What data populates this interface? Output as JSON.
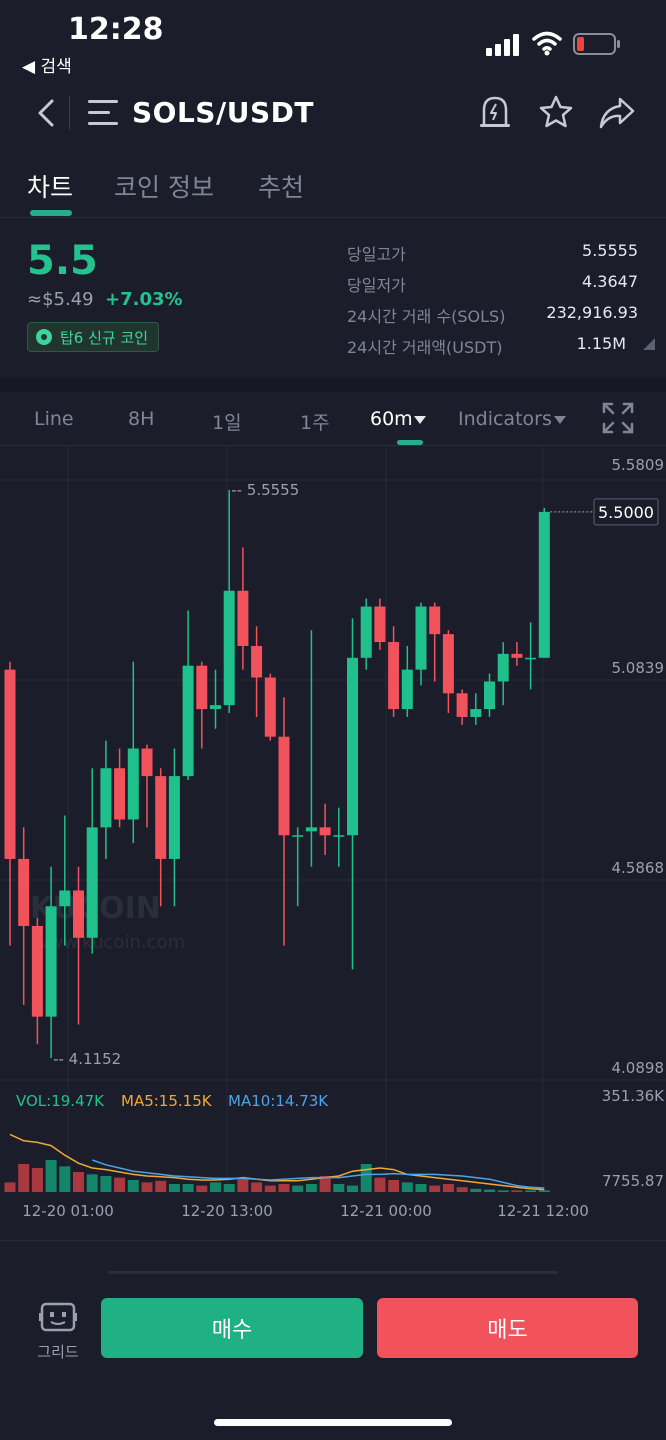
{
  "status": {
    "time": "12:28",
    "back_label": "◀ 검색"
  },
  "header": {
    "pair": "SOLS/USDT"
  },
  "tabs": [
    {
      "label": "차트"
    },
    {
      "label": "코인 정보"
    },
    {
      "label": "추천"
    }
  ],
  "ticker": {
    "price": "5.5",
    "fiat": "≈$5.49",
    "change": "+7.03%",
    "badge": "탑6 신규 코인",
    "stats": [
      {
        "label": "당일고가",
        "value": "5.5555"
      },
      {
        "label": "당일저가",
        "value": "4.3647"
      },
      {
        "label": "24시간 거래 수(SOLS)",
        "value": "232,916.93"
      },
      {
        "label": "24시간 거래액(USDT)",
        "value": "1.15M"
      }
    ]
  },
  "toolbar": {
    "items": [
      "Line",
      "8H",
      "1일",
      "1주",
      "60m",
      "Indicators"
    ],
    "active": "60m"
  },
  "chart": {
    "watermark_main": "KUCOIN",
    "watermark_url": "www.kucoin.com",
    "y_ticks": [
      "5.5809",
      "5.0839",
      "4.5868",
      "4.0898"
    ],
    "current_price": "5.5000",
    "high_label": "5.5555",
    "low_label": "4.1152",
    "vol_label": "VOL:19.47K",
    "ma5_label": "MA5:15.15K",
    "ma10_label": "MA10:14.73K",
    "vol_max": "351.36K",
    "vol_min": "7755.87",
    "x_ticks": [
      "12-20 01:00",
      "12-20 13:00",
      "12-21 00:00",
      "12-21 12:00"
    ],
    "colors": {
      "up": "#1fc08c",
      "down": "#f2525b",
      "ma5": "#f0a832",
      "ma10": "#4ba3e8",
      "vol": "#1fc08c"
    }
  },
  "chart_data": {
    "type": "candlestick",
    "ylim": [
      4.0898,
      5.5809
    ],
    "candles": [
      {
        "o": 5.1,
        "c": 4.62,
        "h": 5.12,
        "l": 4.4
      },
      {
        "o": 4.62,
        "c": 4.45,
        "h": 4.7,
        "l": 4.25
      },
      {
        "o": 4.45,
        "c": 4.22,
        "h": 4.47,
        "l": 4.15
      },
      {
        "o": 4.22,
        "c": 4.5,
        "h": 4.6,
        "l": 4.1152
      },
      {
        "o": 4.5,
        "c": 4.54,
        "h": 4.73,
        "l": 4.4
      },
      {
        "o": 4.54,
        "c": 4.42,
        "h": 4.6,
        "l": 4.2
      },
      {
        "o": 4.42,
        "c": 4.7,
        "h": 4.85,
        "l": 4.38
      },
      {
        "o": 4.7,
        "c": 4.85,
        "h": 4.92,
        "l": 4.62
      },
      {
        "o": 4.85,
        "c": 4.72,
        "h": 4.9,
        "l": 4.7
      },
      {
        "o": 4.72,
        "c": 4.9,
        "h": 5.12,
        "l": 4.66
      },
      {
        "o": 4.9,
        "c": 4.83,
        "h": 4.91,
        "l": 4.7
      },
      {
        "o": 4.83,
        "c": 4.62,
        "h": 4.85,
        "l": 4.5
      },
      {
        "o": 4.62,
        "c": 4.83,
        "h": 4.9,
        "l": 4.5
      },
      {
        "o": 4.83,
        "c": 5.11,
        "h": 5.25,
        "l": 4.82
      },
      {
        "o": 5.11,
        "c": 5.0,
        "h": 5.12,
        "l": 4.9
      },
      {
        "o": 5.0,
        "c": 5.01,
        "h": 5.1,
        "l": 4.95
      },
      {
        "o": 5.01,
        "c": 5.3,
        "h": 5.5555,
        "l": 4.99
      },
      {
        "o": 5.3,
        "c": 5.16,
        "h": 5.41,
        "l": 5.1
      },
      {
        "o": 5.16,
        "c": 5.08,
        "h": 5.21,
        "l": 4.98
      },
      {
        "o": 5.08,
        "c": 4.93,
        "h": 5.09,
        "l": 4.92
      },
      {
        "o": 4.93,
        "c": 4.68,
        "h": 5.03,
        "l": 4.4
      },
      {
        "o": 4.68,
        "c": 4.68,
        "h": 4.7,
        "l": 4.5
      },
      {
        "o": 4.69,
        "c": 4.7,
        "h": 5.2,
        "l": 4.6
      },
      {
        "o": 4.7,
        "c": 4.68,
        "h": 4.76,
        "l": 4.63
      },
      {
        "o": 4.68,
        "c": 4.68,
        "h": 4.75,
        "l": 4.6
      },
      {
        "o": 4.68,
        "c": 5.13,
        "h": 5.23,
        "l": 4.34
      },
      {
        "o": 5.13,
        "c": 5.26,
        "h": 5.28,
        "l": 5.1
      },
      {
        "o": 5.26,
        "c": 5.17,
        "h": 5.28,
        "l": 5.15
      },
      {
        "o": 5.17,
        "c": 5.0,
        "h": 5.21,
        "l": 4.98
      },
      {
        "o": 5.0,
        "c": 5.1,
        "h": 5.16,
        "l": 4.98
      },
      {
        "o": 5.1,
        "c": 5.26,
        "h": 5.27,
        "l": 5.06
      },
      {
        "o": 5.26,
        "c": 5.19,
        "h": 5.27,
        "l": 5.07
      },
      {
        "o": 5.19,
        "c": 5.04,
        "h": 5.2,
        "l": 4.99
      },
      {
        "o": 5.04,
        "c": 4.98,
        "h": 5.05,
        "l": 4.96
      },
      {
        "o": 4.98,
        "c": 5.0,
        "h": 5.04,
        "l": 4.96
      },
      {
        "o": 5.0,
        "c": 5.07,
        "h": 5.09,
        "l": 4.98
      },
      {
        "o": 5.07,
        "c": 5.14,
        "h": 5.17,
        "l": 5.01
      },
      {
        "o": 5.14,
        "c": 5.13,
        "h": 5.17,
        "l": 5.11
      },
      {
        "o": 5.13,
        "c": 5.13,
        "h": 5.22,
        "l": 5.05
      },
      {
        "o": 5.13,
        "c": 5.5,
        "h": 5.51,
        "l": 5.13
      }
    ],
    "volume": [
      0.12,
      0.35,
      0.3,
      0.4,
      0.32,
      0.25,
      0.22,
      0.2,
      0.18,
      0.15,
      0.12,
      0.14,
      0.1,
      0.1,
      0.08,
      0.12,
      0.1,
      0.18,
      0.12,
      0.08,
      0.1,
      0.08,
      0.1,
      0.2,
      0.1,
      0.08,
      0.35,
      0.18,
      0.15,
      0.12,
      0.1,
      0.08,
      0.1,
      0.06,
      0.04,
      0.03,
      0.02,
      0.02,
      0.02,
      0.02
    ],
    "ma5": [
      0.72,
      0.64,
      0.62,
      0.58,
      0.46,
      0.36,
      0.3,
      0.28,
      0.25,
      0.22,
      0.2,
      0.19,
      0.18,
      0.16,
      0.15,
      0.15,
      0.16,
      0.18,
      0.16,
      0.14,
      0.14,
      0.14,
      0.16,
      0.18,
      0.2,
      0.26,
      0.28,
      0.3,
      0.28,
      0.22,
      0.2,
      0.18,
      0.16,
      0.14,
      0.12,
      0.1,
      0.08,
      0.06,
      0.04,
      0.03
    ],
    "ma10": [
      null,
      null,
      null,
      null,
      null,
      null,
      0.4,
      0.34,
      0.3,
      0.26,
      0.24,
      0.22,
      0.2,
      0.19,
      0.18,
      0.17,
      0.17,
      0.17,
      0.16,
      0.15,
      0.16,
      0.17,
      0.18,
      0.18,
      0.18,
      0.2,
      0.22,
      0.22,
      0.23,
      0.22,
      0.22,
      0.22,
      0.21,
      0.2,
      0.18,
      0.16,
      0.12,
      0.08,
      0.06,
      0.05
    ]
  }
}
